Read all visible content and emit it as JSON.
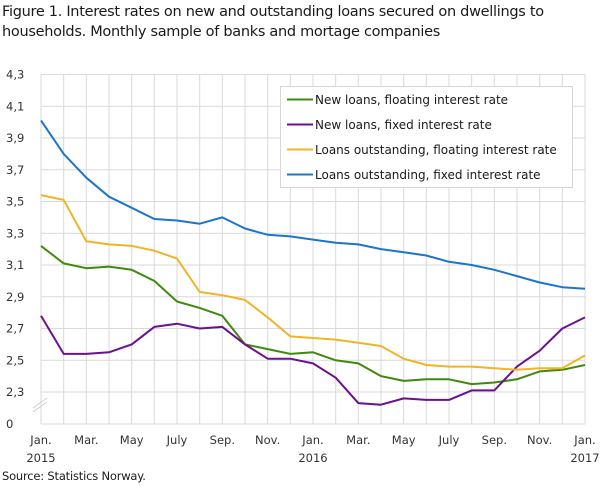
{
  "title": "Figure 1. Interest rates on new and outstanding loans secured on dwellings to households. Monthly sample of banks and mortage companies",
  "source": "Source: Statistics Norway.",
  "chart_data": {
    "type": "line",
    "title": "Figure 1. Interest rates on new and outstanding loans secured on dwellings to households. Monthly sample of banks and mortage companies",
    "xlabel": "",
    "ylabel": "",
    "y_ticks": [
      "0",
      "2,3",
      "2,5",
      "2,7",
      "2,9",
      "3,1",
      "3,3",
      "3,5",
      "3,7",
      "3,9",
      "4,1",
      "4,3"
    ],
    "ylim": [
      2.3,
      4.3
    ],
    "y_axis_break": true,
    "grid": true,
    "legend_position": "top-right (inside plot)",
    "x": [
      "2015-01",
      "2015-02",
      "2015-03",
      "2015-04",
      "2015-05",
      "2015-06",
      "2015-07",
      "2015-08",
      "2015-09",
      "2015-10",
      "2015-11",
      "2015-12",
      "2016-01",
      "2016-02",
      "2016-03",
      "2016-04",
      "2016-05",
      "2016-06",
      "2016-07",
      "2016-08",
      "2016-09",
      "2016-10",
      "2016-11",
      "2016-12",
      "2017-01"
    ],
    "x_tick_labels": [
      {
        "label": "Jan.",
        "sub": "2015"
      },
      {
        "label": "Mar.",
        "sub": ""
      },
      {
        "label": "May",
        "sub": ""
      },
      {
        "label": "July",
        "sub": ""
      },
      {
        "label": "Sep.",
        "sub": ""
      },
      {
        "label": "Nov.",
        "sub": ""
      },
      {
        "label": "Jan.",
        "sub": "2016"
      },
      {
        "label": "Mar.",
        "sub": ""
      },
      {
        "label": "May",
        "sub": ""
      },
      {
        "label": "July",
        "sub": ""
      },
      {
        "label": "Sep.",
        "sub": ""
      },
      {
        "label": "Nov.",
        "sub": ""
      },
      {
        "label": "Jan.",
        "sub": "2017"
      }
    ],
    "series": [
      {
        "name": "New loans, floating interest rate",
        "color": "#3f8a0c",
        "values": [
          3.22,
          3.11,
          3.08,
          3.09,
          3.07,
          3.0,
          2.87,
          2.83,
          2.78,
          2.6,
          2.57,
          2.54,
          2.55,
          2.5,
          2.48,
          2.4,
          2.37,
          2.38,
          2.38,
          2.35,
          2.36,
          2.38,
          2.43,
          2.44,
          2.47
        ]
      },
      {
        "name": "New loans, fixed interest rate",
        "color": "#6a1091",
        "values": [
          2.78,
          2.54,
          2.54,
          2.55,
          2.6,
          2.71,
          2.73,
          2.7,
          2.71,
          2.6,
          2.51,
          2.51,
          2.48,
          2.39,
          2.23,
          2.22,
          2.26,
          2.25,
          2.25,
          2.31,
          2.31,
          2.46,
          2.56,
          2.7,
          2.77
        ]
      },
      {
        "name": "Loans outstanding, floating interest rate",
        "color": "#f0b424",
        "values": [
          3.54,
          3.51,
          3.25,
          3.23,
          3.22,
          3.19,
          3.14,
          2.93,
          2.91,
          2.88,
          2.77,
          2.65,
          2.64,
          2.63,
          2.61,
          2.59,
          2.51,
          2.47,
          2.46,
          2.46,
          2.45,
          2.44,
          2.45,
          2.45,
          2.53
        ]
      },
      {
        "name": "Loans outstanding, fixed interest rate",
        "color": "#1a75cf",
        "values": [
          4.01,
          3.8,
          3.65,
          3.53,
          3.46,
          3.39,
          3.38,
          3.36,
          3.4,
          3.33,
          3.29,
          3.28,
          3.26,
          3.24,
          3.23,
          3.2,
          3.18,
          3.16,
          3.12,
          3.1,
          3.07,
          3.03,
          2.99,
          2.96,
          2.95
        ]
      }
    ]
  }
}
